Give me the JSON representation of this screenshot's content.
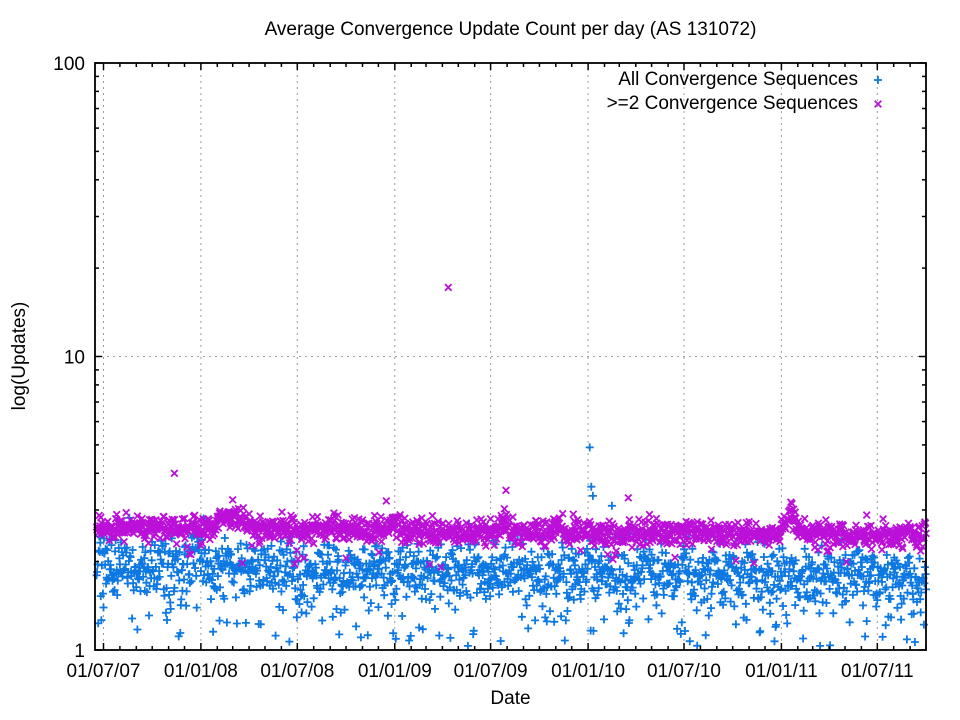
{
  "chart_data": {
    "type": "scatter",
    "title": "Average Convergence Update Count per day (AS 131072)",
    "xlabel": "Date",
    "ylabel": "log(Updates)",
    "y_scale": "log10",
    "ylim": [
      1,
      100
    ],
    "y_major_ticks": [
      {
        "value": 1,
        "label": "1"
      },
      {
        "value": 10,
        "label": "10"
      },
      {
        "value": 100,
        "label": "100"
      }
    ],
    "y_grid_values": [
      10
    ],
    "x_range": [
      "2007-06-15",
      "2011-10-01"
    ],
    "x_major_ticks": [
      {
        "date": "2007-07-01",
        "label": "01/07/07"
      },
      {
        "date": "2008-01-01",
        "label": "01/01/08"
      },
      {
        "date": "2008-07-01",
        "label": "01/07/08"
      },
      {
        "date": "2009-01-01",
        "label": "01/01/09"
      },
      {
        "date": "2009-07-01",
        "label": "01/07/09"
      },
      {
        "date": "2010-01-01",
        "label": "01/01/10"
      },
      {
        "date": "2010-07-01",
        "label": "01/07/10"
      },
      {
        "date": "2011-01-01",
        "label": "01/01/11"
      },
      {
        "date": "2011-07-01",
        "label": "01/07/11"
      }
    ],
    "x_minor_ticks": "monthly",
    "grid": {
      "color": "#9b9b9b",
      "dash": "2,4"
    },
    "legend": {
      "position": "top-right-inside",
      "entries": [
        {
          "label": "All Convergence Sequences",
          "marker": "plus",
          "color": "#0d78e2"
        },
        {
          "label": ">=2 Convergence Sequences",
          "marker": "cross",
          "color": "#ba10d8"
        }
      ]
    },
    "series": [
      {
        "name": "All Convergence Sequences",
        "marker": "plus",
        "color": "#0d78e2",
        "synthesis": {
          "seed": 101,
          "start": "2007-06-18",
          "end": "2011-10-01",
          "interval_days": 1,
          "mean_log10_start": 0.29,
          "mean_log10_end": 0.245,
          "std_log10": 0.05,
          "low_tail": {
            "fraction": 0.1,
            "min_log10": 0.01,
            "max_log10": 0.22
          },
          "bumps": [
            {
              "center": "2007-12-28",
              "sigma_days": 15,
              "amp_log10": 0.03
            },
            {
              "center": "2010-01-05",
              "sigma_days": 6,
              "amp_log10": 0.05
            }
          ]
        },
        "outliers": [
          [
            "2010-01-04",
            4.9
          ],
          [
            "2010-01-07",
            3.6
          ],
          [
            "2010-01-10",
            3.35
          ],
          [
            "2010-02-15",
            3.1
          ],
          [
            "2008-05-10",
            2.6
          ]
        ]
      },
      {
        "name": ">=2 Convergence Sequences",
        "marker": "cross",
        "color": "#ba10d8",
        "synthesis": {
          "seed": 202,
          "start": "2007-06-18",
          "end": "2011-10-01",
          "interval_days": 1,
          "mean_log10_start": 0.418,
          "mean_log10_end": 0.388,
          "std_log10": 0.021,
          "low_tail": {
            "fraction": 0.012,
            "min_log10": 0.28,
            "max_log10": 0.34
          },
          "bumps": [
            {
              "center": "2008-02-25",
              "sigma_days": 20,
              "amp_log10": 0.05
            },
            {
              "center": "2008-12-28",
              "sigma_days": 10,
              "amp_log10": 0.025
            },
            {
              "center": "2009-07-28",
              "sigma_days": 8,
              "amp_log10": 0.03
            },
            {
              "center": "2011-01-20",
              "sigma_days": 10,
              "amp_log10": 0.06
            }
          ]
        },
        "outliers": [
          [
            "2007-11-12",
            4.0
          ],
          [
            "2008-03-01",
            3.25
          ],
          [
            "2009-04-12",
            17.2
          ],
          [
            "2009-07-30",
            3.5
          ],
          [
            "2010-03-18",
            3.3
          ],
          [
            "2011-01-21",
            3.15
          ]
        ]
      }
    ]
  }
}
